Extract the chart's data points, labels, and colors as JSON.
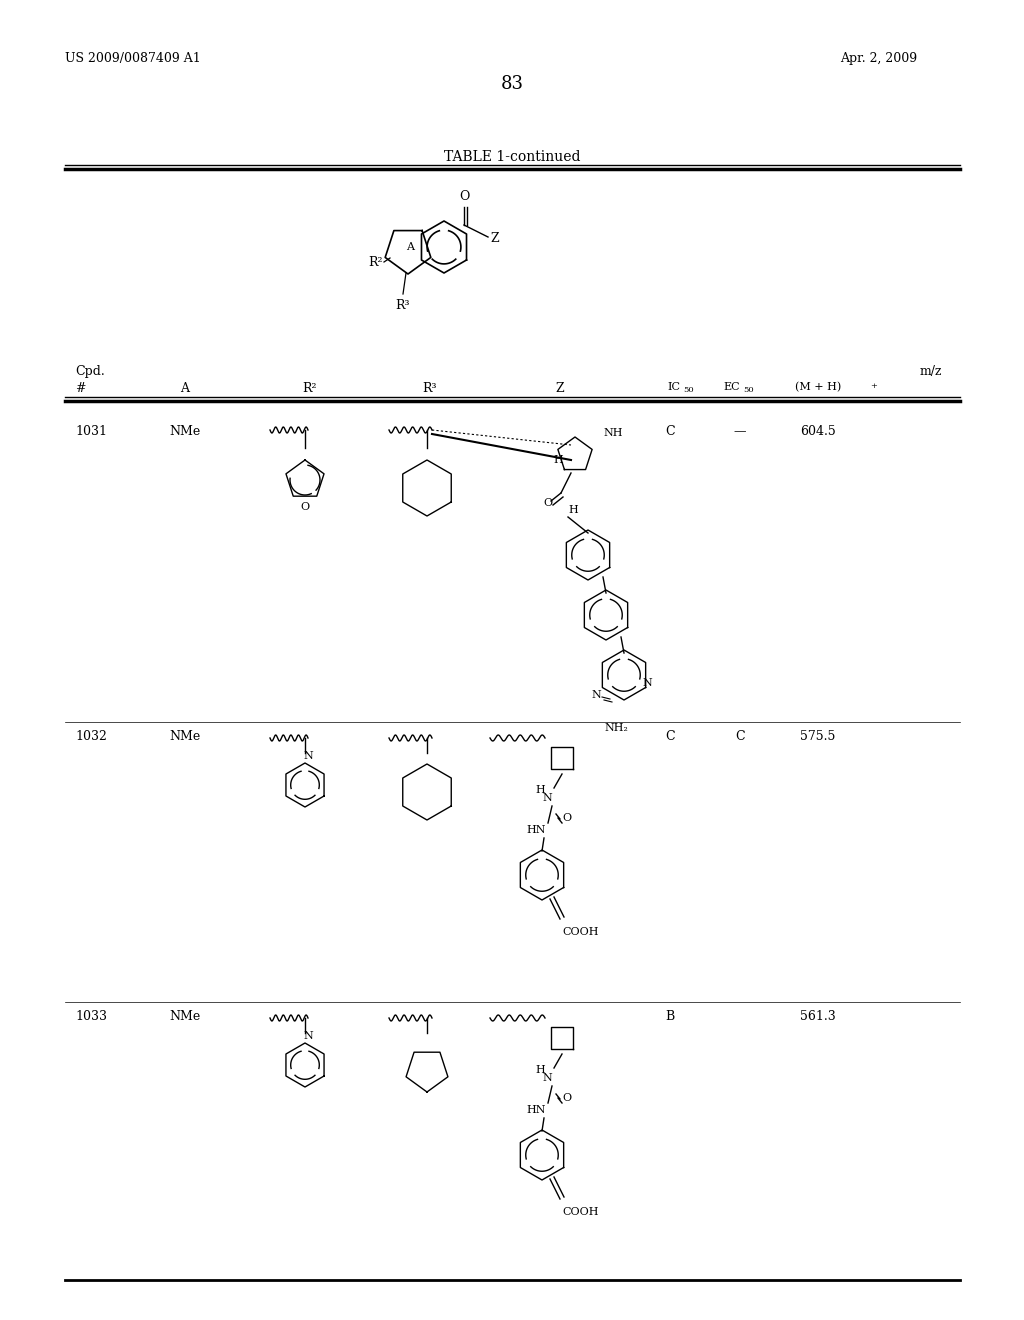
{
  "page_number": "83",
  "patent_number": "US 2009/0087409 A1",
  "patent_date": "Apr. 2, 2009",
  "table_title": "TABLE 1-continued",
  "compounds": [
    {
      "id": "1031",
      "A": "NMe",
      "Z": "C",
      "IC50": "C",
      "EC50": "—",
      "mz": "604.5"
    },
    {
      "id": "1032",
      "A": "NMe",
      "Z": "C",
      "IC50": "C",
      "EC50": "C",
      "mz": "575.5"
    },
    {
      "id": "1033",
      "A": "NMe",
      "Z": "B",
      "IC50": "B",
      "EC50": "",
      "mz": "561.3"
    }
  ],
  "bg_color": "#ffffff"
}
